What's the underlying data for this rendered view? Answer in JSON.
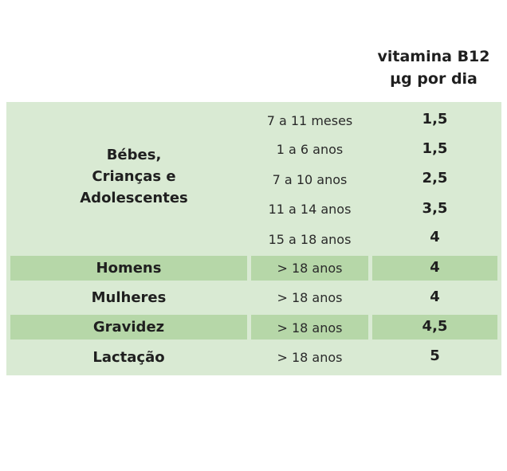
{
  "header": {
    "line1": "vitamina B12",
    "line2": "µg por dia"
  },
  "group": {
    "label_lines": [
      "Bébes,",
      "Crianças e",
      "Adolescentes"
    ],
    "rows": [
      {
        "age": "7 a 11 meses",
        "value": "1,5"
      },
      {
        "age": "1 a 6 anos",
        "value": "1,5"
      },
      {
        "age": "7 a 10 anos",
        "value": "2,5"
      },
      {
        "age": "11 a 14 anos",
        "value": "3,5"
      },
      {
        "age": "15 a 18 anos",
        "value": "4"
      }
    ]
  },
  "rows": [
    {
      "category": "Homens",
      "age": "> 18 anos",
      "value": "4"
    },
    {
      "category": "Mulheres",
      "age": "> 18 anos",
      "value": "4"
    },
    {
      "category": "Gravidez",
      "age": "> 18 anos",
      "value": "4,5"
    },
    {
      "category": "Lactação",
      "age": "> 18 anos",
      "value": "5"
    }
  ],
  "colors": {
    "light_row": "#d9ead3",
    "dark_row": "#b6d7a8"
  }
}
